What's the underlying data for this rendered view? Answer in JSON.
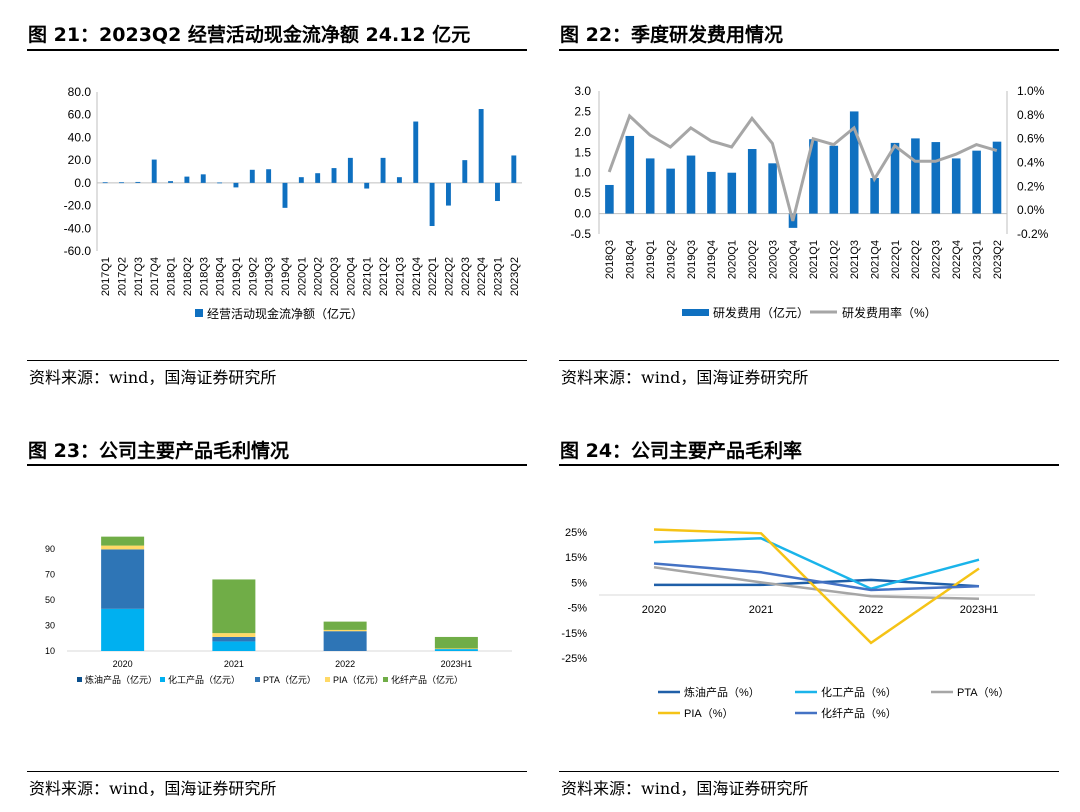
{
  "figures": [
    {
      "title": "图 21：2023Q2 经营活动现金流净额 24.12 亿元",
      "source": "资料来源：wind，国海证券研究所",
      "legend": [
        "经营活动现金流净额（亿元）"
      ]
    },
    {
      "title": "图 22：季度研发费用情况",
      "source": "资料来源：wind，国海证券研究所",
      "legend": [
        "研发费用（亿元）",
        "研发费用率（%）"
      ]
    },
    {
      "title": "图 23：公司主要产品毛利情况",
      "source": "资料来源：wind，国海证券研究所",
      "legend": [
        "炼油产品（亿元）",
        "化工产品（亿元）",
        "PTA（亿元）",
        "PIA（亿元）",
        "化纤产品（亿元）"
      ]
    },
    {
      "title": "图 24：公司主要产品毛利率",
      "source": "资料来源：wind，国海证券研究所",
      "legend": [
        "炼油产品（%）",
        "化工产品（%）",
        "PTA（%）",
        "PIA（%）",
        "化纤产品（%）"
      ]
    }
  ],
  "chart_data": [
    {
      "type": "bar",
      "categories": [
        "2017Q1",
        "2017Q2",
        "2017Q3",
        "2017Q4",
        "2018Q1",
        "2018Q2",
        "2018Q3",
        "2018Q4",
        "2019Q1",
        "2019Q2",
        "2019Q3",
        "2019Q4",
        "2020Q1",
        "2020Q2",
        "2020Q3",
        "2020Q4",
        "2021Q1",
        "2021Q2",
        "2021Q3",
        "2021Q4",
        "2022Q1",
        "2022Q2",
        "2022Q3",
        "2022Q4",
        "2023Q1",
        "2023Q2"
      ],
      "series": [
        {
          "name": "经营活动现金流净额（亿元）",
          "values": [
            0.5,
            0.5,
            0.8,
            20.5,
            1.5,
            5.5,
            7.5,
            0.3,
            -4,
            11.5,
            12,
            -22,
            5,
            8.5,
            13,
            22,
            -5,
            22,
            5,
            54,
            -38,
            -20,
            20,
            65,
            -16,
            24.12
          ]
        }
      ],
      "ylim": [
        -60,
        80
      ],
      "yticks": [
        "80.0",
        "60.0",
        "40.0",
        "20.0",
        "0.0",
        "-20.0",
        "-40.0",
        "-60.0"
      ],
      "color": "#0f70c0",
      "legend_position": "bottom"
    },
    {
      "type": "bar+line",
      "categories": [
        "2018Q3",
        "2018Q4",
        "2019Q1",
        "2019Q2",
        "2019Q3",
        "2019Q4",
        "2020Q1",
        "2020Q2",
        "2020Q3",
        "2020Q4",
        "2021Q1",
        "2021Q2",
        "2021Q3",
        "2021Q4",
        "2022Q1",
        "2022Q2",
        "2022Q3",
        "2022Q4",
        "2023Q1",
        "2023Q2"
      ],
      "series": [
        {
          "name": "研发费用（亿元）",
          "axis": "left",
          "kind": "bar",
          "values": [
            0.7,
            1.9,
            1.35,
            1.1,
            1.42,
            1.02,
            1.0,
            1.58,
            1.23,
            -0.35,
            1.82,
            1.66,
            2.5,
            0.87,
            1.73,
            1.84,
            1.75,
            1.35,
            1.54,
            1.76
          ]
        },
        {
          "name": "研发费用率（%）",
          "axis": "right",
          "kind": "line",
          "values": [
            0.32,
            0.79,
            0.63,
            0.53,
            0.69,
            0.58,
            0.53,
            0.77,
            0.56,
            -0.09,
            0.6,
            0.55,
            0.69,
            0.26,
            0.54,
            0.41,
            0.41,
            0.47,
            0.55,
            0.5
          ]
        }
      ],
      "ylim_left": [
        -0.5,
        3.0
      ],
      "yticks_left": [
        "3.0",
        "2.5",
        "2.0",
        "1.5",
        "1.0",
        "0.5",
        "0.0",
        "-0.5"
      ],
      "ylim_right": [
        -0.2,
        1.0
      ],
      "yticks_right": [
        "1.0%",
        "0.8%",
        "0.6%",
        "0.4%",
        "0.2%",
        "0.0%",
        "-0.2%"
      ],
      "colors": {
        "bar": "#0f70c0",
        "line": "#a6a6a6"
      },
      "legend_position": "bottom"
    },
    {
      "type": "bar",
      "stacked": true,
      "categories": [
        "2020",
        "2021",
        "2022",
        "2023H1"
      ],
      "series": [
        {
          "name": "炼油产品（亿元）",
          "values": [
            0,
            0,
            0,
            0
          ]
        },
        {
          "name": "化工产品（亿元）",
          "values": [
            33,
            7.5,
            0,
            1.5
          ]
        },
        {
          "name": "PTA（亿元）",
          "values": [
            46.5,
            3.5,
            15.5,
            0
          ]
        },
        {
          "name": "PIA（亿元）",
          "values": [
            3,
            3,
            1,
            0.5
          ]
        },
        {
          "name": "化纤产品（亿元）",
          "values": [
            7,
            42,
            6.5,
            9
          ]
        }
      ],
      "baseline": 10,
      "ylim": [
        10,
        100
      ],
      "yticks": [
        "90",
        "70",
        "50",
        "30",
        "10"
      ],
      "colors": [
        "#0a4f8c",
        "#00b0f0",
        "#2e75b6",
        "#ffd966",
        "#70ad47"
      ],
      "legend_position": "bottom"
    },
    {
      "type": "line",
      "categories": [
        "2020",
        "2021",
        "2022",
        "2023H1"
      ],
      "series": [
        {
          "name": "炼油产品（%）",
          "values": [
            4,
            4,
            6,
            3.5
          ]
        },
        {
          "name": "化工产品（%）",
          "values": [
            21,
            22.5,
            2.5,
            14
          ]
        },
        {
          "name": "PTA（%）",
          "values": [
            11,
            5,
            -0.5,
            -1.5
          ]
        },
        {
          "name": "PIA（%）",
          "values": [
            26,
            24.5,
            -19,
            10.5
          ]
        },
        {
          "name": "化纤产品（%）",
          "values": [
            12.5,
            9,
            2,
            3.5
          ]
        }
      ],
      "ylim": [
        -25,
        25
      ],
      "yticks": [
        "25%",
        "15%",
        "5%",
        "-5%",
        "-15%",
        "-25%"
      ],
      "colors": [
        "#1f5fa8",
        "#1ab4ea",
        "#a6a6a6",
        "#f5c316",
        "#4472c4"
      ],
      "legend_position": "bottom"
    }
  ]
}
